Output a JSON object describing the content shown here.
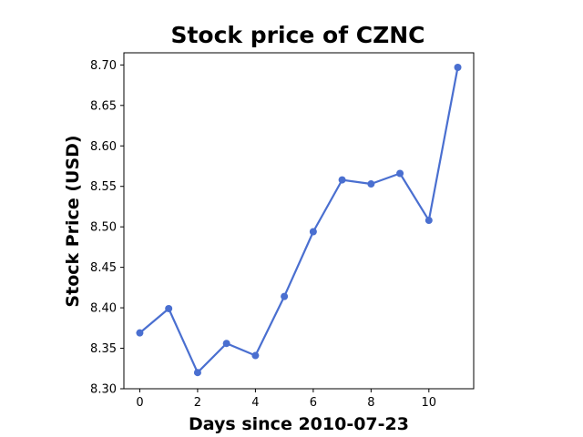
{
  "chart_data": {
    "type": "line",
    "title": "Stock price of CZNC",
    "xlabel": "Days since 2010-07-23",
    "ylabel": "Stock Price (USD)",
    "x": [
      0,
      1,
      2,
      3,
      4,
      5,
      6,
      7,
      8,
      9,
      10,
      11
    ],
    "series": [
      {
        "values": [
          8.369,
          8.399,
          8.32,
          8.356,
          8.341,
          8.414,
          8.494,
          8.558,
          8.553,
          8.566,
          8.508,
          8.697
        ]
      }
    ],
    "xlim": [
      -0.55,
      11.55
    ],
    "ylim": [
      8.3,
      8.715
    ],
    "xticks": [
      0,
      2,
      4,
      6,
      8,
      10
    ],
    "xtick_labels": [
      "0",
      "2",
      "4",
      "6",
      "8",
      "10"
    ],
    "yticks": [
      8.3,
      8.35,
      8.4,
      8.45,
      8.5,
      8.55,
      8.6,
      8.65,
      8.7
    ],
    "ytick_labels": [
      "8.30",
      "8.35",
      "8.40",
      "8.45",
      "8.50",
      "8.55",
      "8.60",
      "8.65",
      "8.70"
    ],
    "grid": false,
    "line_color": "#4a6fd0"
  }
}
